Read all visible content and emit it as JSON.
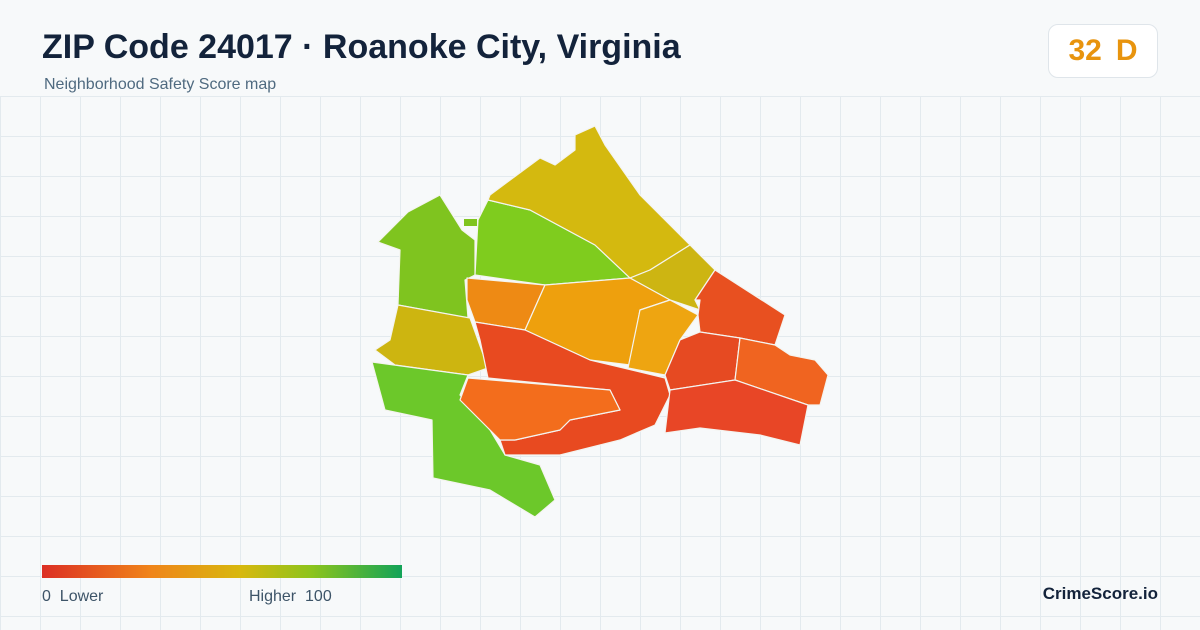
{
  "header": {
    "title": "ZIP Code 24017 · Roanoke City, Virginia",
    "subtitle": "Neighborhood Safety Score map"
  },
  "score": {
    "value": 32,
    "grade": "D"
  },
  "legend": {
    "min": 0,
    "min_label": "Lower",
    "max_label": "Higher",
    "max": 100
  },
  "brand": "CrimeScore.io"
}
